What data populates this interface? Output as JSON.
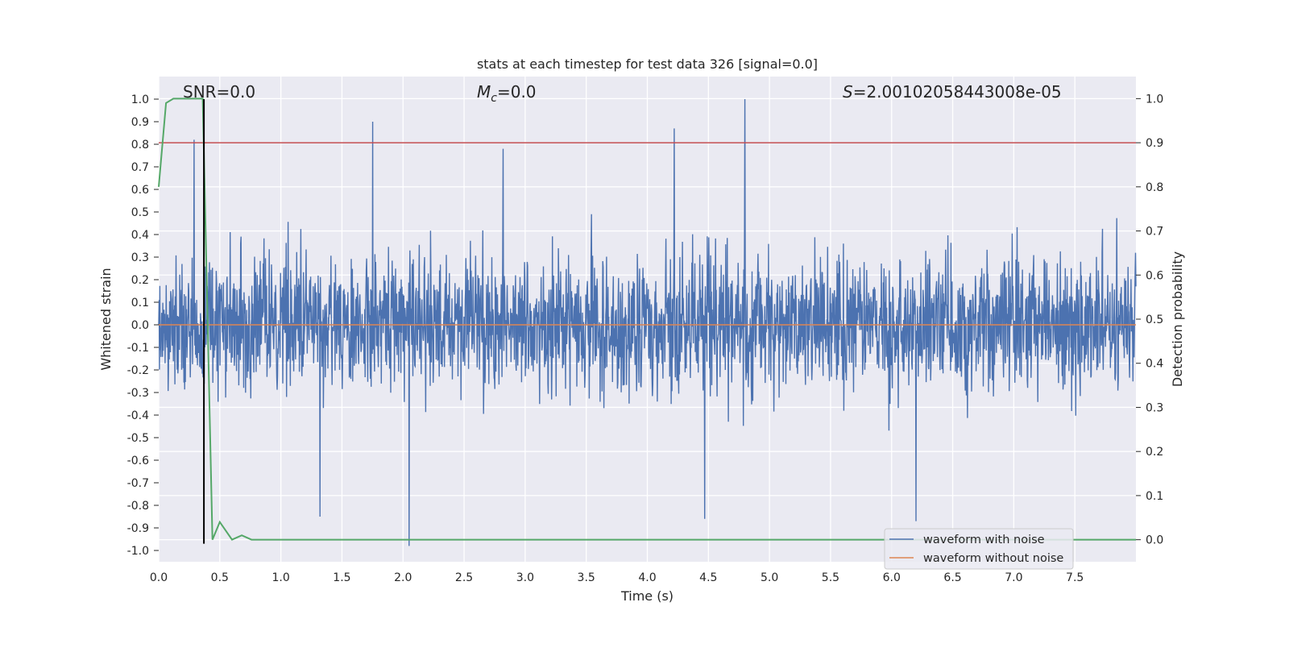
{
  "chart_data": {
    "type": "line",
    "title": "stats at each timestep for test data 326 [signal=0.0]",
    "xlabel": "Time (s)",
    "ylabel_left": "Whitened strain",
    "ylabel_right": "Detection probability",
    "xlim": [
      0.0,
      8.0
    ],
    "ylim_left": [
      -1.05,
      1.1
    ],
    "ylim_right": [
      -0.05,
      1.05
    ],
    "x_ticks": [
      "0.0",
      "0.5",
      "1.0",
      "1.5",
      "2.0",
      "2.5",
      "3.0",
      "3.5",
      "4.0",
      "4.5",
      "5.0",
      "5.5",
      "6.0",
      "6.5",
      "7.0",
      "7.5"
    ],
    "y_ticks_left": [
      "-1.0",
      "-0.9",
      "-0.8",
      "-0.7",
      "-0.6",
      "-0.5",
      "-0.4",
      "-0.3",
      "-0.2",
      "-0.1",
      "0.0",
      "0.1",
      "0.2",
      "0.3",
      "0.4",
      "0.5",
      "0.6",
      "0.7",
      "0.8",
      "0.9",
      "1.0"
    ],
    "y_ticks_right": [
      "0.0",
      "0.1",
      "0.2",
      "0.3",
      "0.4",
      "0.5",
      "0.6",
      "0.7",
      "0.8",
      "0.9",
      "1.0"
    ],
    "grid": true,
    "legend_position": "lower-right",
    "annotations": {
      "snr": "SNR=0.0",
      "mc_symbol": "M",
      "mc_sub": "c",
      "mc_value": "=0.0",
      "s_symbol": "S",
      "s_value": "=2.00102058443008e-05"
    },
    "series": [
      {
        "name": "waveform with noise",
        "axis": "left",
        "color": "#4c72b0",
        "description": "noisy whitened strain, roughly within -1.0 to 1.0",
        "envelope_peaks_positive": [
          [
            0.29,
            0.82
          ],
          [
            1.75,
            0.9
          ],
          [
            4.22,
            0.87
          ],
          [
            4.8,
            1.0
          ],
          [
            2.82,
            0.78
          ]
        ],
        "envelope_peaks_negative": [
          [
            2.05,
            -0.98
          ],
          [
            6.2,
            -0.87
          ],
          [
            4.47,
            -0.86
          ],
          [
            1.32,
            -0.85
          ]
        ]
      },
      {
        "name": "waveform without noise",
        "axis": "left",
        "color": "#dd8452",
        "x": [
          0.0,
          8.0
        ],
        "y": [
          0.0,
          0.0
        ]
      },
      {
        "name": "detection probability",
        "axis": "right",
        "color": "#55a868",
        "x": [
          0.0,
          0.06,
          0.12,
          0.2,
          0.28,
          0.36,
          0.44,
          0.5,
          0.6,
          0.68,
          0.76,
          0.9,
          2.0,
          4.0,
          6.0,
          8.0
        ],
        "y": [
          0.8,
          0.99,
          1.0,
          1.0,
          1.0,
          1.0,
          0.0,
          0.04,
          0.0,
          0.01,
          0.0,
          0.0,
          0.0,
          0.0,
          0.0,
          0.0
        ]
      }
    ],
    "reference_lines": [
      {
        "orientation": "horizontal",
        "axis": "right",
        "value": 0.9,
        "color": "#c44e52"
      },
      {
        "orientation": "vertical",
        "value": 0.37,
        "ymin": -0.97,
        "ymax": 1.0,
        "color": "#000000"
      }
    ]
  }
}
